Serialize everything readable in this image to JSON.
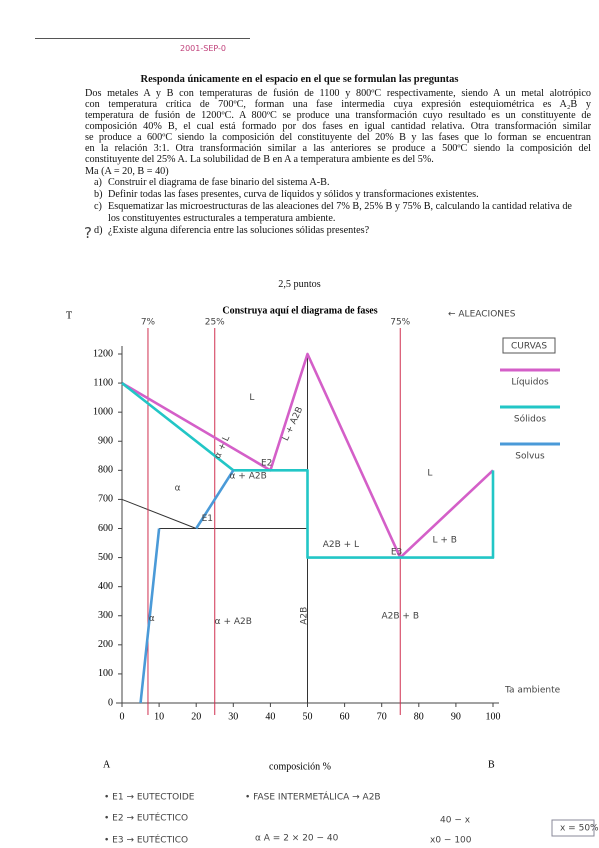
{
  "header": {
    "note": "2001-SEP-0"
  },
  "instructions": "Responda únicamente en el espacio en el que se formulan las preguntas",
  "problem": [
    "Dos metales A y B con temperaturas de fusión de 1100 y 800ºC respectivamente, siendo A un metal alotrópico",
    "con temperatura crítica de 700ºC, forman una fase intermedia cuya expresión estequiométrica es A₂B y",
    "temperatura de fusión de 1200ºC. A 800ºC se produce una transformación cuyo resultado es un constituyente de",
    "composición 40% B, el cual está formado por dos fases en igual cantidad relativa. Otra transformación similar",
    "se produce a 600ºC siendo la composición del constituyente del 20% B y las fases que lo forman se encuentran",
    "en la relación 3:1. Otra transformación similar a las anteriores se produce a 500ºC siendo la composición del",
    "constituyente del 25% A. La solubilidad de B en A a temperatura ambiente es del 5%."
  ],
  "data_line": "Ma (A = 20, B = 40)",
  "questions": [
    {
      "label": "a)",
      "text": "Construir el diagrama de fase binario del sistema A-B."
    },
    {
      "label": "b)",
      "text": "Definir todas las fases presentes, curva de líquidos y sólidos y transformaciones existentes."
    },
    {
      "label": "c)",
      "text": "Esquematizar las microestructuras de las aleaciones del 7% B, 25% B y 75% B, calculando la cantidad relativa de los constituyentes estructurales a temperatura ambiente."
    },
    {
      "label": "d)",
      "text": "¿Existe alguna diferencia entre las soluciones sólidas presentes?"
    }
  ],
  "margin_mark": "?",
  "score": "2,5 puntos",
  "chart_data": {
    "type": "line",
    "title": "Construya aquí el diagrama de fases",
    "y_label": "T",
    "x_label": "composición %",
    "left_label": "A",
    "right_label": "B",
    "xlim": [
      0,
      100
    ],
    "ylim": [
      0,
      1200
    ],
    "xticks": [
      0,
      10,
      20,
      30,
      40,
      50,
      60,
      70,
      80,
      90,
      100
    ],
    "yticks": [
      0,
      100,
      200,
      300,
      400,
      500,
      600,
      700,
      800,
      900,
      1000,
      1100,
      1200
    ],
    "legend_title": "CURVAS",
    "series": [
      {
        "name": "Líquidos",
        "color": "#d45fc8",
        "x": [
          0,
          40,
          50,
          75,
          100
        ],
        "values": [
          1100,
          800,
          1200,
          500,
          800
        ]
      },
      {
        "name": "Sólidos",
        "color": "#22c6c6",
        "x": [
          0,
          30,
          50,
          50,
          100,
          100
        ],
        "values": [
          1100,
          800,
          800,
          500,
          500,
          800
        ]
      },
      {
        "name": "Solvus",
        "color": "#4a9ad8",
        "x": [
          5,
          10,
          null,
          20,
          30
        ],
        "values": [
          0,
          600,
          null,
          600,
          800
        ]
      }
    ],
    "boundaries": {
      "color": "#333333",
      "lines": [
        {
          "x": [
            0,
            20
          ],
          "values": [
            700,
            600
          ]
        },
        {
          "x": [
            10,
            50
          ],
          "values": [
            600,
            600
          ]
        },
        {
          "x": [
            50,
            50
          ],
          "values": [
            0,
            1200
          ]
        },
        {
          "x": [
            0,
            40
          ],
          "values": [
            1100,
            800
          ]
        }
      ]
    },
    "alloys_title": "← ALEACIONES",
    "alloys": [
      {
        "x": 7,
        "label": "7%"
      },
      {
        "x": 25,
        "label": "25%"
      },
      {
        "x": 75,
        "label": "75%"
      }
    ],
    "alloy_color": "#d03050",
    "regions": [
      "L",
      "α + L",
      "E2",
      "L + A2B",
      "α",
      "E1",
      "α + A2B",
      "A2B + L",
      "E3",
      "L",
      "L + B",
      "α",
      "α + A2B",
      "A2B",
      "A2B + B"
    ],
    "ambient_label": "Ta ambiente"
  },
  "notes": [
    "• E1 → EUTECTOIDE",
    "• FASE INTERMETÁLICA → A2B",
    "• E2 → EUTÉCTICO",
    "• E3 → EUTÉCTICO",
    "α A = 2 × 20 − 40",
    "40 − x",
    "x0 − 100",
    "x = 50%"
  ]
}
